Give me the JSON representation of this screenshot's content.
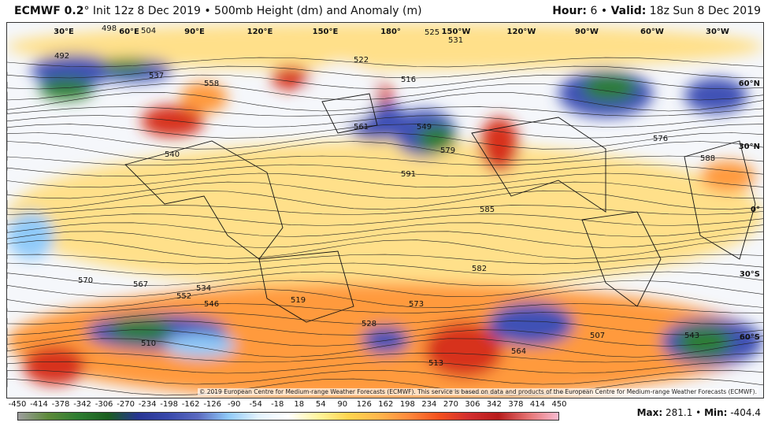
{
  "header": {
    "model": "ECMWF 0.2",
    "init": "° Init 12z 8 Dec 2019 • 500mb Height (dm) and Anomaly (m)",
    "hour_label": "Hour:",
    "hour_value": "6",
    "valid_label": "Valid:",
    "valid_value": "18z Sun 8 Dec 2019"
  },
  "map": {
    "longitude_labels": [
      "30°E",
      "60°E",
      "90°E",
      "120°E",
      "150°E",
      "180°",
      "150°W",
      "120°W",
      "90°W",
      "60°W",
      "30°W"
    ],
    "latitude_labels": [
      "60°N",
      "30°N",
      "0°",
      "30°S",
      "60°S"
    ],
    "contour_labels": [
      "492",
      "498",
      "504",
      "516",
      "522",
      "525",
      "531",
      "537",
      "540",
      "546",
      "549",
      "552",
      "558",
      "561",
      "567",
      "570",
      "573",
      "576",
      "579",
      "582",
      "585",
      "588",
      "591",
      "510",
      "513",
      "519",
      "528",
      "534",
      "507",
      "564",
      "543"
    ],
    "copyright": "© 2019 European Centre for Medium-range Weather Forecasts (ECMWF). This service is based on data and products of the European Centre for Medium-range Weather Forecasts (ECMWF).",
    "colors": {
      "strong_negative": "#2e7d32",
      "negative": "#3f51b5",
      "weak_negative": "#90caf9",
      "neutral": "#f5f7fb",
      "weak_positive": "#ffe08a",
      "positive": "#ff9a3c",
      "strong_positive": "#d7301f"
    }
  },
  "legend": {
    "ticks": [
      "-450",
      "-414",
      "-378",
      "-342",
      "-306",
      "-270",
      "-234",
      "-198",
      "-162",
      "-126",
      "-90",
      "-54",
      "-18",
      "18",
      "54",
      "90",
      "126",
      "162",
      "198",
      "234",
      "270",
      "306",
      "342",
      "378",
      "414",
      "450"
    ],
    "gradient": [
      "#9e9e9e",
      "#5d8a3a",
      "#2e7d32",
      "#1b5e20",
      "#283593",
      "#3949ab",
      "#5c6bc0",
      "#90caf9",
      "#e3f2fd",
      "#ffffff",
      "#fff59d",
      "#ffd54f",
      "#ffb74d",
      "#ff8a3d",
      "#f4511e",
      "#d32f2f",
      "#b71c1c",
      "#e57373",
      "#f8bbd0"
    ]
  },
  "stats": {
    "max_label": "Max:",
    "max_value": "281.1",
    "min_label": "Min:",
    "min_value": "-404.4"
  }
}
